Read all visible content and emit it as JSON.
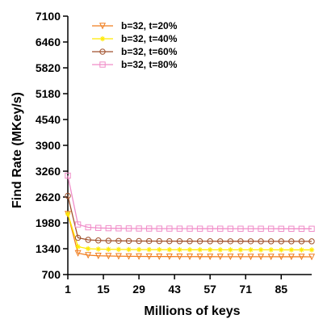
{
  "chart_data": {
    "type": "line",
    "title": "",
    "xlabel": "Millions of keys",
    "ylabel": "Find Rate (MKey/s)",
    "x_ticks": [
      1,
      15,
      29,
      43,
      57,
      71,
      85
    ],
    "y_ticks": [
      700,
      1340,
      1980,
      2620,
      3260,
      3900,
      4540,
      5180,
      5820,
      6460,
      7100
    ],
    "xlim": [
      1,
      97
    ],
    "ylim": [
      700,
      7100
    ],
    "grid": false,
    "legend_position": "top-left",
    "x": [
      1,
      5,
      9,
      13,
      17,
      21,
      25,
      29,
      33,
      37,
      41,
      45,
      49,
      53,
      57,
      61,
      65,
      69,
      73,
      77,
      81,
      85,
      89,
      93,
      97
    ],
    "series": [
      {
        "name": "b=32, t=20%",
        "color": "#f07d1e",
        "marker": "triangle-down",
        "values": [
          2200,
          1230,
          1180,
          1165,
          1160,
          1155,
          1152,
          1150,
          1148,
          1147,
          1146,
          1145,
          1145,
          1144,
          1144,
          1143,
          1143,
          1143,
          1142,
          1142,
          1142,
          1141,
          1141,
          1141,
          1140
        ]
      },
      {
        "name": "b=32, t=40%",
        "color": "#ffea00",
        "marker": "star",
        "values": [
          2200,
          1390,
          1340,
          1330,
          1325,
          1322,
          1320,
          1318,
          1317,
          1316,
          1315,
          1315,
          1314,
          1314,
          1313,
          1313,
          1313,
          1312,
          1312,
          1312,
          1312,
          1311,
          1311,
          1311,
          1311
        ]
      },
      {
        "name": "b=32, t=60%",
        "color": "#a0522d",
        "marker": "circle",
        "values": [
          2650,
          1610,
          1560,
          1545,
          1538,
          1534,
          1532,
          1530,
          1529,
          1528,
          1527,
          1526,
          1526,
          1525,
          1525,
          1524,
          1524,
          1524,
          1524,
          1523,
          1523,
          1523,
          1523,
          1523,
          1523
        ]
      },
      {
        "name": "b=32, t=80%",
        "color": "#f08cc8",
        "marker": "square",
        "values": [
          3150,
          1940,
          1870,
          1855,
          1848,
          1844,
          1842,
          1840,
          1839,
          1838,
          1838,
          1837,
          1837,
          1836,
          1836,
          1836,
          1835,
          1835,
          1835,
          1835,
          1835,
          1834,
          1834,
          1834,
          1834
        ]
      }
    ]
  }
}
